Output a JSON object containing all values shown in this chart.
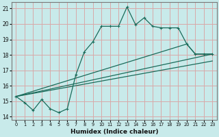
{
  "xlabel": "Humidex (Indice chaleur)",
  "bg_color": "#c8eaea",
  "grid_color": "#d8a8a8",
  "line_color": "#1a6b5a",
  "xlim": [
    -0.5,
    23.5
  ],
  "ylim": [
    13.8,
    21.4
  ],
  "yticks": [
    14,
    15,
    16,
    17,
    18,
    19,
    20,
    21
  ],
  "xticks": [
    0,
    1,
    2,
    3,
    4,
    5,
    6,
    7,
    8,
    9,
    10,
    11,
    12,
    13,
    14,
    15,
    16,
    17,
    18,
    19,
    20,
    21,
    22,
    23
  ],
  "line1_x": [
    0,
    1,
    2,
    3,
    4,
    5,
    6,
    7,
    8,
    9,
    10,
    11,
    12,
    13,
    14,
    15,
    16,
    17,
    18,
    19,
    20,
    21,
    22,
    23
  ],
  "line1_y": [
    15.3,
    14.9,
    14.4,
    15.1,
    14.5,
    14.25,
    14.5,
    16.7,
    18.2,
    18.85,
    19.85,
    19.85,
    19.85,
    21.1,
    19.95,
    20.4,
    19.85,
    19.75,
    19.75,
    19.75,
    18.7,
    18.05,
    18.05,
    18.05
  ],
  "line2_x": [
    0,
    23
  ],
  "line2_y": [
    15.3,
    18.05
  ],
  "line3_x": [
    0,
    23
  ],
  "line3_y": [
    15.3,
    17.6
  ],
  "line4_x": [
    0,
    20,
    21,
    22,
    23
  ],
  "line4_y": [
    15.3,
    18.7,
    18.05,
    18.05,
    18.05
  ]
}
